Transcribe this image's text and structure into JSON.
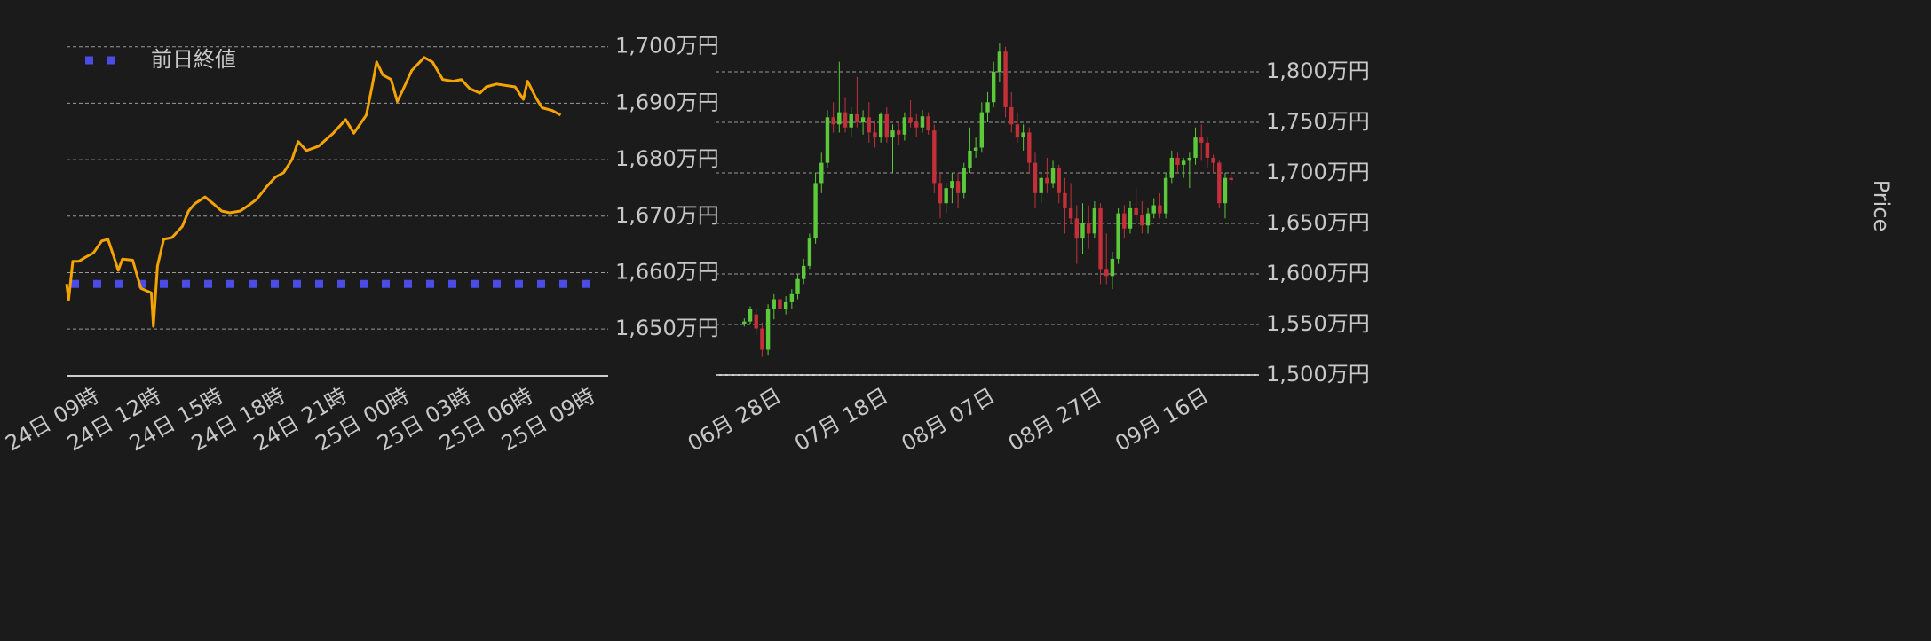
{
  "chart_data": [
    {
      "type": "line",
      "x": [
        -1.5,
        -1.4,
        -1.2,
        -0.9,
        -0.6,
        -0.2,
        0.2,
        0.5,
        0.8,
        1.0,
        1.2,
        1.7,
        1.9,
        2.1,
        2.6,
        2.7,
        2.9,
        3.2,
        3.6,
        4.1,
        4.4,
        4.7,
        5.2,
        5.6,
        6.0,
        6.4,
        6.9,
        7.3,
        7.7,
        8.2,
        8.6,
        9.0,
        9.4,
        9.7,
        10.1,
        10.7,
        11.4,
        12.0,
        12.4,
        12.7,
        13.0,
        13.3,
        13.5,
        13.8,
        14.2,
        14.5,
        14.8,
        15.2,
        15.8,
        16.2,
        16.7,
        17.2,
        17.6,
        18.0,
        18.5,
        18.8,
        19.3,
        20.2,
        20.6,
        20.8,
        21.2,
        21.5,
        22.0,
        22.4
      ],
      "values": [
        1658,
        1655.2,
        1662,
        1662,
        1662.7,
        1663.5,
        1665.6,
        1665.9,
        1662.7,
        1660.4,
        1662.4,
        1662.2,
        1659.6,
        1657.2,
        1656.4,
        1650.5,
        1661.2,
        1665.9,
        1666.2,
        1668.2,
        1670.9,
        1672.2,
        1673.4,
        1672.2,
        1670.9,
        1670.6,
        1670.9,
        1671.9,
        1673,
        1675.3,
        1676.9,
        1677.7,
        1680,
        1683.2,
        1681.6,
        1682.4,
        1684.7,
        1687.1,
        1684.7,
        1686.3,
        1687.9,
        1693.4,
        1697.3,
        1695,
        1694.2,
        1690.3,
        1692.6,
        1695.8,
        1698.1,
        1697.3,
        1694.2,
        1693.9,
        1694.2,
        1692.6,
        1691.8,
        1692.9,
        1693.4,
        1692.9,
        1690.7,
        1693.9,
        1691,
        1689.2,
        1688.7,
        1687.9
      ],
      "color": "#f5a300",
      "reference_lines": [
        {
          "name": "前日終値",
          "value": 1658,
          "color": "#4b4be6"
        }
      ],
      "xlim": [
        -1.5,
        24.7
      ],
      "xticks": [
        {
          "value": 0,
          "label": "24日 09時"
        },
        {
          "value": 3,
          "label": "24日 12時"
        },
        {
          "value": 6,
          "label": "24日 15時"
        },
        {
          "value": 9,
          "label": "24日 18時"
        },
        {
          "value": 12,
          "label": "24日 21時"
        },
        {
          "value": 15,
          "label": "25日 00時"
        },
        {
          "value": 18,
          "label": "25日 03時"
        },
        {
          "value": 21,
          "label": "25日 06時"
        },
        {
          "value": 24,
          "label": "25日 09時"
        }
      ],
      "ylim": [
        1641.7,
        1702
      ],
      "yticks": [
        {
          "value": 1650,
          "label": "1,650万円"
        },
        {
          "value": 1660,
          "label": "1,660万円"
        },
        {
          "value": 1670,
          "label": "1,670万円"
        },
        {
          "value": 1680,
          "label": "1,680万円"
        },
        {
          "value": 1690,
          "label": "1,690万円"
        },
        {
          "value": 1700,
          "label": "1,700万円"
        }
      ],
      "grid": true,
      "legend": "upper left"
    },
    {
      "type": "candlestick",
      "y_label": "Price",
      "categories": [
        null,
        null,
        null,
        null,
        null,
        null,
        "06月 28日",
        null,
        null,
        null,
        null,
        null,
        null,
        null,
        null,
        null,
        null,
        null,
        null,
        null,
        null,
        null,
        null,
        null,
        "07月 18日",
        null,
        null,
        null,
        null,
        null,
        null,
        null,
        null,
        null,
        null,
        null,
        null,
        null,
        null,
        null,
        null,
        null,
        "08月 07日",
        null,
        null,
        null,
        null,
        null,
        null,
        null,
        null,
        null,
        null,
        null,
        null,
        null,
        null,
        null,
        null,
        null,
        "08月 27日",
        null,
        null,
        null,
        null,
        null,
        null,
        null,
        null,
        null,
        null,
        null,
        null,
        null,
        null,
        null,
        null,
        null,
        "09月 16日",
        null,
        null,
        null,
        null
      ],
      "open": [
        1550,
        1553,
        1560,
        1546,
        1525,
        1565,
        1575,
        1565,
        1572,
        1580,
        1595,
        1608,
        1635,
        1690,
        1710,
        1755,
        1748,
        1760,
        1745,
        1758,
        1750,
        1755,
        1740,
        1735,
        1758,
        1735,
        1742,
        1738,
        1755,
        1750,
        1745,
        1756,
        1742,
        1690,
        1670,
        1685,
        1692,
        1680,
        1705,
        1722,
        1725,
        1760,
        1770,
        1800,
        1820,
        1765,
        1748,
        1735,
        1740,
        1710,
        1680,
        1695,
        1690,
        1705,
        1680,
        1665,
        1655,
        1635,
        1650,
        1640,
        1665,
        1605,
        1598,
        1615,
        1660,
        1645,
        1665,
        1658,
        1648,
        1660,
        1668,
        1660,
        1695,
        1715,
        1708,
        1712,
        1715,
        1735,
        1730,
        1715,
        1710,
        1670,
        1695
      ],
      "high": [
        1556,
        1568,
        1565,
        1552,
        1570,
        1580,
        1580,
        1578,
        1585,
        1600,
        1615,
        1640,
        1700,
        1720,
        1762,
        1770,
        1810,
        1775,
        1765,
        1795,
        1762,
        1770,
        1752,
        1760,
        1765,
        1748,
        1750,
        1760,
        1772,
        1758,
        1762,
        1760,
        1748,
        1700,
        1690,
        1700,
        1700,
        1710,
        1745,
        1735,
        1770,
        1780,
        1810,
        1828,
        1825,
        1780,
        1760,
        1748,
        1745,
        1720,
        1700,
        1715,
        1712,
        1708,
        1695,
        1690,
        1668,
        1670,
        1668,
        1672,
        1670,
        1640,
        1622,
        1665,
        1668,
        1672,
        1685,
        1672,
        1665,
        1675,
        1680,
        1700,
        1722,
        1720,
        1715,
        1720,
        1745,
        1748,
        1735,
        1718,
        1712,
        1700,
        1700
      ],
      "low": [
        1548,
        1550,
        1540,
        1518,
        1520,
        1555,
        1560,
        1560,
        1565,
        1575,
        1590,
        1605,
        1630,
        1680,
        1705,
        1740,
        1740,
        1740,
        1735,
        1745,
        1738,
        1730,
        1725,
        1730,
        1730,
        1700,
        1728,
        1732,
        1745,
        1735,
        1740,
        1738,
        1680,
        1655,
        1660,
        1670,
        1665,
        1675,
        1700,
        1715,
        1720,
        1750,
        1765,
        1790,
        1755,
        1740,
        1730,
        1722,
        1700,
        1665,
        1670,
        1680,
        1685,
        1670,
        1640,
        1650,
        1610,
        1620,
        1625,
        1635,
        1590,
        1590,
        1585,
        1610,
        1635,
        1640,
        1650,
        1640,
        1640,
        1655,
        1655,
        1655,
        1690,
        1700,
        1695,
        1685,
        1708,
        1712,
        1705,
        1700,
        1665,
        1655,
        1690
      ],
      "close": [
        1553,
        1565,
        1546,
        1525,
        1565,
        1575,
        1565,
        1572,
        1580,
        1595,
        1608,
        1635,
        1690,
        1710,
        1755,
        1748,
        1760,
        1745,
        1758,
        1750,
        1755,
        1740,
        1735,
        1758,
        1735,
        1742,
        1738,
        1755,
        1750,
        1745,
        1756,
        1742,
        1690,
        1670,
        1685,
        1692,
        1680,
        1705,
        1722,
        1725,
        1760,
        1770,
        1800,
        1820,
        1765,
        1748,
        1735,
        1740,
        1710,
        1680,
        1695,
        1690,
        1705,
        1680,
        1665,
        1655,
        1635,
        1650,
        1640,
        1665,
        1605,
        1598,
        1615,
        1660,
        1645,
        1665,
        1658,
        1648,
        1660,
        1668,
        1660,
        1695,
        1715,
        1708,
        1712,
        1715,
        1735,
        1730,
        1715,
        1710,
        1670,
        1695,
        1693
      ],
      "up_color": "#5cc93a",
      "down_color": "#c4303a",
      "ylim": [
        1500,
        1836
      ],
      "yticks": [
        {
          "value": 1500,
          "label": "1,500万円"
        },
        {
          "value": 1550,
          "label": "1,550万円"
        },
        {
          "value": 1600,
          "label": "1,600万円"
        },
        {
          "value": 1650,
          "label": "1,650万円"
        },
        {
          "value": 1700,
          "label": "1,700万円"
        },
        {
          "value": 1750,
          "label": "1,750万円"
        },
        {
          "value": 1800,
          "label": "1,800万円"
        }
      ],
      "grid": true
    }
  ]
}
